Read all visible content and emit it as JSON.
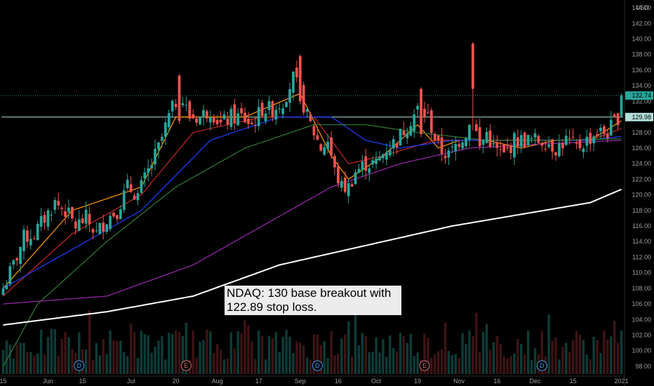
{
  "chart_data": {
    "type": "candlestick",
    "symbol": "NDAQ",
    "currency": "USD",
    "annotation": "NDAQ: 130 base breakout with 122.89 stop loss.",
    "ylim": [
      97,
      145
    ],
    "y_ticks": [
      144,
      142,
      140,
      138,
      136,
      134,
      132,
      130,
      128,
      126,
      124,
      122,
      120,
      118,
      116,
      114,
      112,
      110,
      108,
      106,
      104,
      102,
      100,
      98
    ],
    "y_tick_labels": [
      "144.00",
      "142.00",
      "140.00",
      "138.00",
      "136.00",
      "134.00",
      "132.00",
      "130.00",
      "128.00",
      "126.00",
      "124.00",
      "122.00",
      "120.00",
      "118.00",
      "116.00",
      "114.00",
      "112.00",
      "110.00",
      "108.00",
      "106.00",
      "104.00",
      "102.00",
      "100.00",
      "98.00"
    ],
    "x_labels": [
      "15",
      "Jun",
      "15",
      "Jul",
      "20",
      "Aug",
      "17",
      "Sep",
      "16",
      "Oct",
      "19",
      "Nov",
      "16",
      "Dec",
      "15",
      "2021"
    ],
    "x_label_bar_index": [
      0,
      13,
      23,
      37,
      50,
      62,
      74,
      86,
      97,
      108,
      120,
      132,
      143,
      154,
      165,
      179
    ],
    "price_lines": [
      {
        "value": 132.74,
        "label": "132.74",
        "style": "dotted",
        "color": "#4db6ac"
      },
      {
        "value": 129.98,
        "label": "129.98",
        "style": "solid",
        "color": "#b2dfdb"
      }
    ],
    "event_badges": [
      {
        "bar": 22,
        "letter": "D"
      },
      {
        "bar": 53,
        "letter": "E"
      },
      {
        "bar": 91,
        "letter": "D"
      },
      {
        "bar": 122,
        "letter": "E"
      },
      {
        "bar": 156,
        "letter": "D"
      }
    ],
    "keypoints": [
      [
        0,
        108
      ],
      [
        3,
        111
      ],
      [
        6,
        114.5
      ],
      [
        9,
        115
      ],
      [
        12,
        117
      ],
      [
        15,
        119
      ],
      [
        18,
        118
      ],
      [
        21,
        116
      ],
      [
        24,
        117
      ],
      [
        27,
        115
      ],
      [
        30,
        117
      ],
      [
        33,
        118
      ],
      [
        36,
        121
      ],
      [
        39,
        120
      ],
      [
        42,
        123
      ],
      [
        45,
        126
      ],
      [
        48,
        130
      ],
      [
        51,
        133
      ],
      [
        54,
        130
      ],
      [
        57,
        130
      ],
      [
        60,
        131
      ],
      [
        63,
        129
      ],
      [
        66,
        130
      ],
      [
        69,
        130
      ],
      [
        72,
        129
      ],
      [
        75,
        131
      ],
      [
        78,
        131
      ],
      [
        81,
        132
      ],
      [
        84,
        135
      ],
      [
        86,
        133
      ],
      [
        88,
        130
      ],
      [
        90,
        128
      ],
      [
        92,
        126
      ],
      [
        94,
        127
      ],
      [
        96,
        123
      ],
      [
        98,
        121
      ],
      [
        100,
        121
      ],
      [
        102,
        123
      ],
      [
        105,
        124
      ],
      [
        108,
        124
      ],
      [
        111,
        126
      ],
      [
        114,
        127
      ],
      [
        117,
        129
      ],
      [
        120,
        131
      ],
      [
        123,
        130
      ],
      [
        126,
        126
      ],
      [
        129,
        125
      ],
      [
        132,
        127
      ],
      [
        134,
        128
      ],
      [
        136,
        130
      ],
      [
        138,
        126
      ],
      [
        140,
        128
      ],
      [
        142,
        126
      ],
      [
        145,
        125
      ],
      [
        148,
        127
      ],
      [
        151,
        127
      ],
      [
        154,
        127
      ],
      [
        157,
        127
      ],
      [
        160,
        126
      ],
      [
        163,
        127
      ],
      [
        166,
        126
      ],
      [
        169,
        127
      ],
      [
        172,
        128
      ],
      [
        175,
        128
      ],
      [
        178,
        130
      ],
      [
        179,
        132.74
      ]
    ],
    "spikes": [
      {
        "bar": 136,
        "high": 139.6
      },
      {
        "bar": 86,
        "high": 138
      },
      {
        "bar": 51,
        "high": 135.5
      },
      {
        "bar": 121,
        "high": 133.8
      }
    ],
    "moving_averages": [
      {
        "name": "MA10",
        "color": "#ff9800",
        "points": [
          [
            0,
            108
          ],
          [
            20,
            118
          ],
          [
            40,
            121
          ],
          [
            50,
            130
          ],
          [
            70,
            130
          ],
          [
            86,
            133
          ],
          [
            95,
            125
          ],
          [
            100,
            122
          ],
          [
            110,
            125
          ],
          [
            120,
            129
          ],
          [
            126,
            126
          ],
          [
            132,
            127
          ],
          [
            140,
            127
          ],
          [
            150,
            126
          ],
          [
            160,
            127
          ],
          [
            170,
            127
          ],
          [
            179,
            129.5
          ]
        ]
      },
      {
        "name": "MA20",
        "color": "#c62828",
        "points": [
          [
            0,
            107
          ],
          [
            20,
            115
          ],
          [
            40,
            120
          ],
          [
            55,
            128
          ],
          [
            75,
            130
          ],
          [
            90,
            130
          ],
          [
            100,
            124
          ],
          [
            110,
            125
          ],
          [
            125,
            127
          ],
          [
            140,
            127
          ],
          [
            155,
            127
          ],
          [
            170,
            127
          ],
          [
            179,
            128.5
          ]
        ]
      },
      {
        "name": "MA30",
        "color": "#1e40ff",
        "points": [
          [
            0,
            108
          ],
          [
            20,
            113
          ],
          [
            40,
            118
          ],
          [
            60,
            127
          ],
          [
            80,
            130
          ],
          [
            95,
            130
          ],
          [
            105,
            127
          ],
          [
            115,
            126
          ],
          [
            130,
            127
          ],
          [
            150,
            127
          ],
          [
            170,
            127
          ],
          [
            179,
            127.5
          ]
        ]
      },
      {
        "name": "MA50",
        "color": "#2e7d32",
        "points": [
          [
            0,
            98
          ],
          [
            10,
            106
          ],
          [
            30,
            114
          ],
          [
            50,
            121
          ],
          [
            70,
            126
          ],
          [
            90,
            129
          ],
          [
            105,
            129
          ],
          [
            120,
            128
          ],
          [
            140,
            127
          ],
          [
            160,
            127
          ],
          [
            179,
            127.2
          ]
        ]
      },
      {
        "name": "MA100",
        "color": "#9c27b0",
        "points": [
          [
            0,
            106
          ],
          [
            30,
            107
          ],
          [
            55,
            111
          ],
          [
            75,
            116
          ],
          [
            95,
            121
          ],
          [
            115,
            124
          ],
          [
            135,
            126
          ],
          [
            155,
            126.5
          ],
          [
            179,
            127
          ]
        ]
      },
      {
        "name": "MA200",
        "color": "#ffffff",
        "points": [
          [
            0,
            103.3
          ],
          [
            30,
            105
          ],
          [
            55,
            107
          ],
          [
            80,
            111
          ],
          [
            110,
            114
          ],
          [
            130,
            116
          ],
          [
            150,
            117.5
          ],
          [
            170,
            119
          ],
          [
            179,
            120.7
          ]
        ]
      }
    ]
  }
}
